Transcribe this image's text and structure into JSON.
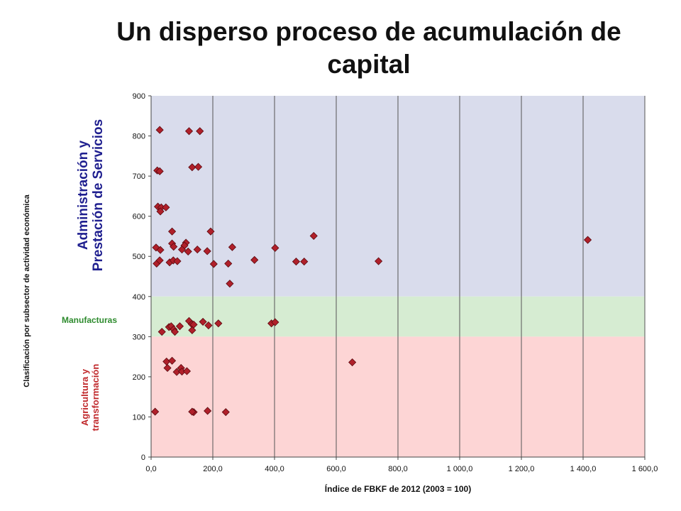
{
  "chart_data": {
    "type": "scatter",
    "title": "Un disperso proceso de acumulación de capital",
    "xlabel": "Índice de FBKF de 2012 (2003 = 100)",
    "ylabel": "Clasificación  por subsector de actividad económica",
    "xlim": [
      0,
      1600
    ],
    "ylim": [
      0,
      900
    ],
    "xticks": [
      "0,0",
      "200,0",
      "400,0",
      "600,0",
      "800,0",
      "1 000,0",
      "1 200,0",
      "1 400,0",
      "1 600,0"
    ],
    "yticks": [
      "0",
      "100",
      "200",
      "300",
      "400",
      "500",
      "600",
      "700",
      "800",
      "900"
    ],
    "grid": "vertical",
    "bands": [
      {
        "name": "Administración y\nPrestación de Servicios",
        "from": 400,
        "to": 900,
        "color": "#d9dcec",
        "label_color": "#1f1f8f"
      },
      {
        "name": "Manufacturas",
        "from": 300,
        "to": 400,
        "color": "#d6ecd2",
        "label_color": "#2e8b2e"
      },
      {
        "name": "Agricultura y\ntransformación",
        "from": 0,
        "to": 300,
        "color": "#fdd5d5",
        "label_color": "#c0282b"
      }
    ],
    "marker_color": "#b0202a",
    "points": [
      {
        "x": 28,
        "y": 815
      },
      {
        "x": 123,
        "y": 812
      },
      {
        "x": 158,
        "y": 812
      },
      {
        "x": 20,
        "y": 714
      },
      {
        "x": 28,
        "y": 712
      },
      {
        "x": 133,
        "y": 722
      },
      {
        "x": 153,
        "y": 723
      },
      {
        "x": 22,
        "y": 624
      },
      {
        "x": 33,
        "y": 622
      },
      {
        "x": 48,
        "y": 622
      },
      {
        "x": 30,
        "y": 612
      },
      {
        "x": 68,
        "y": 562
      },
      {
        "x": 193,
        "y": 562
      },
      {
        "x": 527,
        "y": 551
      },
      {
        "x": 1415,
        "y": 541
      },
      {
        "x": 113,
        "y": 534
      },
      {
        "x": 68,
        "y": 532
      },
      {
        "x": 108,
        "y": 527
      },
      {
        "x": 73,
        "y": 524
      },
      {
        "x": 16,
        "y": 522
      },
      {
        "x": 100,
        "y": 517
      },
      {
        "x": 263,
        "y": 523
      },
      {
        "x": 402,
        "y": 521
      },
      {
        "x": 30,
        "y": 516
      },
      {
        "x": 120,
        "y": 512
      },
      {
        "x": 150,
        "y": 517
      },
      {
        "x": 182,
        "y": 513
      },
      {
        "x": 18,
        "y": 482
      },
      {
        "x": 28,
        "y": 490
      },
      {
        "x": 60,
        "y": 485
      },
      {
        "x": 72,
        "y": 490
      },
      {
        "x": 85,
        "y": 488
      },
      {
        "x": 203,
        "y": 481
      },
      {
        "x": 250,
        "y": 482
      },
      {
        "x": 335,
        "y": 491
      },
      {
        "x": 470,
        "y": 487
      },
      {
        "x": 496,
        "y": 487
      },
      {
        "x": 737,
        "y": 488
      },
      {
        "x": 255,
        "y": 432
      },
      {
        "x": 123,
        "y": 339
      },
      {
        "x": 168,
        "y": 337
      },
      {
        "x": 218,
        "y": 333
      },
      {
        "x": 390,
        "y": 333
      },
      {
        "x": 402,
        "y": 336
      },
      {
        "x": 132,
        "y": 331
      },
      {
        "x": 138,
        "y": 330
      },
      {
        "x": 186,
        "y": 328
      },
      {
        "x": 58,
        "y": 324
      },
      {
        "x": 65,
        "y": 326
      },
      {
        "x": 93,
        "y": 326
      },
      {
        "x": 73,
        "y": 318
      },
      {
        "x": 133,
        "y": 316
      },
      {
        "x": 35,
        "y": 312
      },
      {
        "x": 77,
        "y": 312
      },
      {
        "x": 652,
        "y": 236
      },
      {
        "x": 50,
        "y": 238
      },
      {
        "x": 68,
        "y": 240
      },
      {
        "x": 53,
        "y": 222
      },
      {
        "x": 97,
        "y": 222
      },
      {
        "x": 83,
        "y": 212
      },
      {
        "x": 100,
        "y": 213
      },
      {
        "x": 116,
        "y": 214
      },
      {
        "x": 13,
        "y": 113
      },
      {
        "x": 138,
        "y": 112
      },
      {
        "x": 133,
        "y": 113
      },
      {
        "x": 183,
        "y": 115
      },
      {
        "x": 242,
        "y": 112
      }
    ]
  }
}
